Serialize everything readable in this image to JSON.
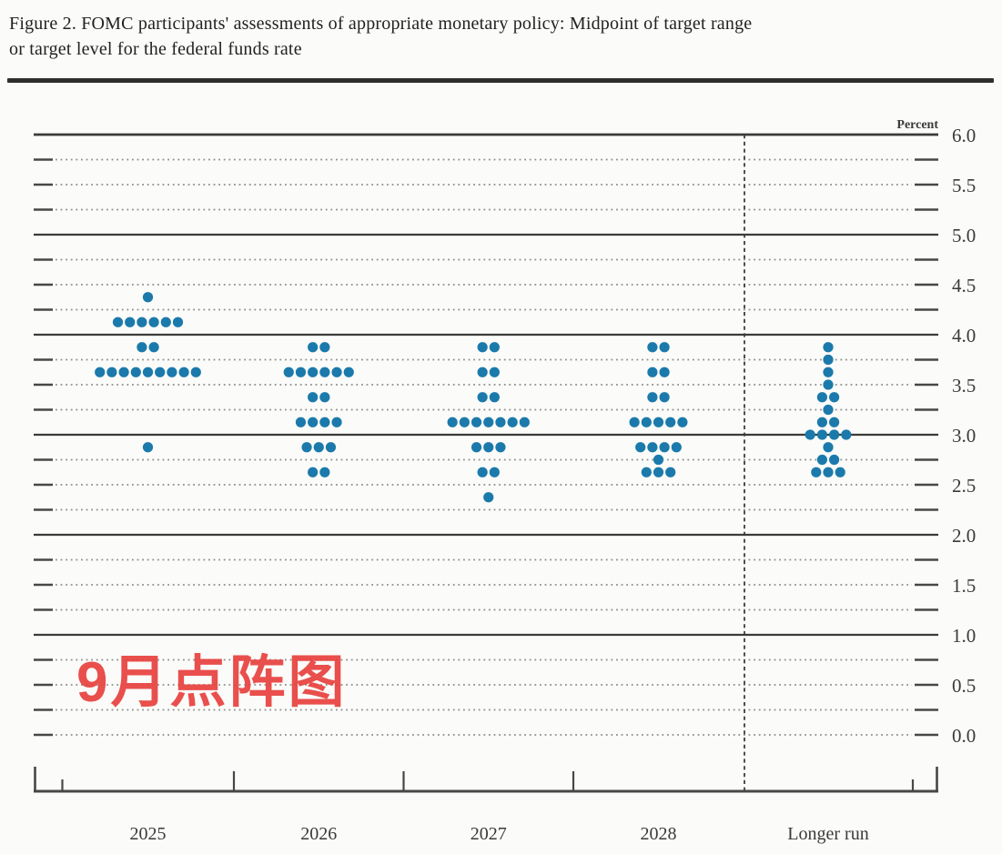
{
  "figure": {
    "title_line1": "Figure 2. FOMC participants' assessments of appropriate monetary policy: Midpoint of target range",
    "title_line2": "or target level for the federal funds rate"
  },
  "overlay": {
    "text": "9月点阵图",
    "color": "#e8433f"
  },
  "chart_data": {
    "type": "scatter",
    "title": "FOMC participants' assessments of appropriate monetary policy: Midpoint of target range or target level for the federal funds rate",
    "unit_label": "Percent",
    "ylim": [
      0.0,
      6.0
    ],
    "y_grid_step": 0.25,
    "y_label_step": 0.5,
    "solid_gridlines": [
      6.0,
      5.0,
      4.0,
      3.0,
      2.0,
      1.0
    ],
    "y_tick_labels": [
      "0.0",
      "0.5",
      "1.0",
      "1.5",
      "2.0",
      "2.5",
      "3.0",
      "3.5",
      "4.0",
      "4.5",
      "5.0",
      "5.5",
      "6.0"
    ],
    "categories": [
      "2025",
      "2026",
      "2027",
      "2028",
      "Longer run"
    ],
    "separator_after_category": "2028",
    "dot_color": "#1b7aab",
    "series": [
      {
        "category": "2025",
        "dots": [
          {
            "rate": 4.375,
            "count": 1
          },
          {
            "rate": 4.125,
            "count": 6
          },
          {
            "rate": 3.875,
            "count": 2
          },
          {
            "rate": 3.625,
            "count": 9
          },
          {
            "rate": 2.875,
            "count": 1
          }
        ]
      },
      {
        "category": "2026",
        "dots": [
          {
            "rate": 3.875,
            "count": 2
          },
          {
            "rate": 3.625,
            "count": 6
          },
          {
            "rate": 3.375,
            "count": 2
          },
          {
            "rate": 3.125,
            "count": 4
          },
          {
            "rate": 2.875,
            "count": 3
          },
          {
            "rate": 2.625,
            "count": 2
          }
        ]
      },
      {
        "category": "2027",
        "dots": [
          {
            "rate": 3.875,
            "count": 2
          },
          {
            "rate": 3.625,
            "count": 2
          },
          {
            "rate": 3.375,
            "count": 2
          },
          {
            "rate": 3.125,
            "count": 7
          },
          {
            "rate": 2.875,
            "count": 3
          },
          {
            "rate": 2.625,
            "count": 2
          },
          {
            "rate": 2.375,
            "count": 1
          }
        ]
      },
      {
        "category": "2028",
        "dots": [
          {
            "rate": 3.875,
            "count": 2
          },
          {
            "rate": 3.625,
            "count": 2
          },
          {
            "rate": 3.375,
            "count": 2
          },
          {
            "rate": 3.125,
            "count": 5
          },
          {
            "rate": 2.875,
            "count": 4
          },
          {
            "rate": 2.75,
            "count": 1
          },
          {
            "rate": 2.625,
            "count": 3
          }
        ]
      },
      {
        "category": "Longer run",
        "dots": [
          {
            "rate": 3.875,
            "count": 1
          },
          {
            "rate": 3.75,
            "count": 1
          },
          {
            "rate": 3.625,
            "count": 1
          },
          {
            "rate": 3.5,
            "count": 1
          },
          {
            "rate": 3.375,
            "count": 2
          },
          {
            "rate": 3.25,
            "count": 1
          },
          {
            "rate": 3.125,
            "count": 2
          },
          {
            "rate": 3.0,
            "count": 4
          },
          {
            "rate": 2.875,
            "count": 1
          },
          {
            "rate": 2.75,
            "count": 2
          },
          {
            "rate": 2.625,
            "count": 3
          }
        ]
      }
    ]
  }
}
